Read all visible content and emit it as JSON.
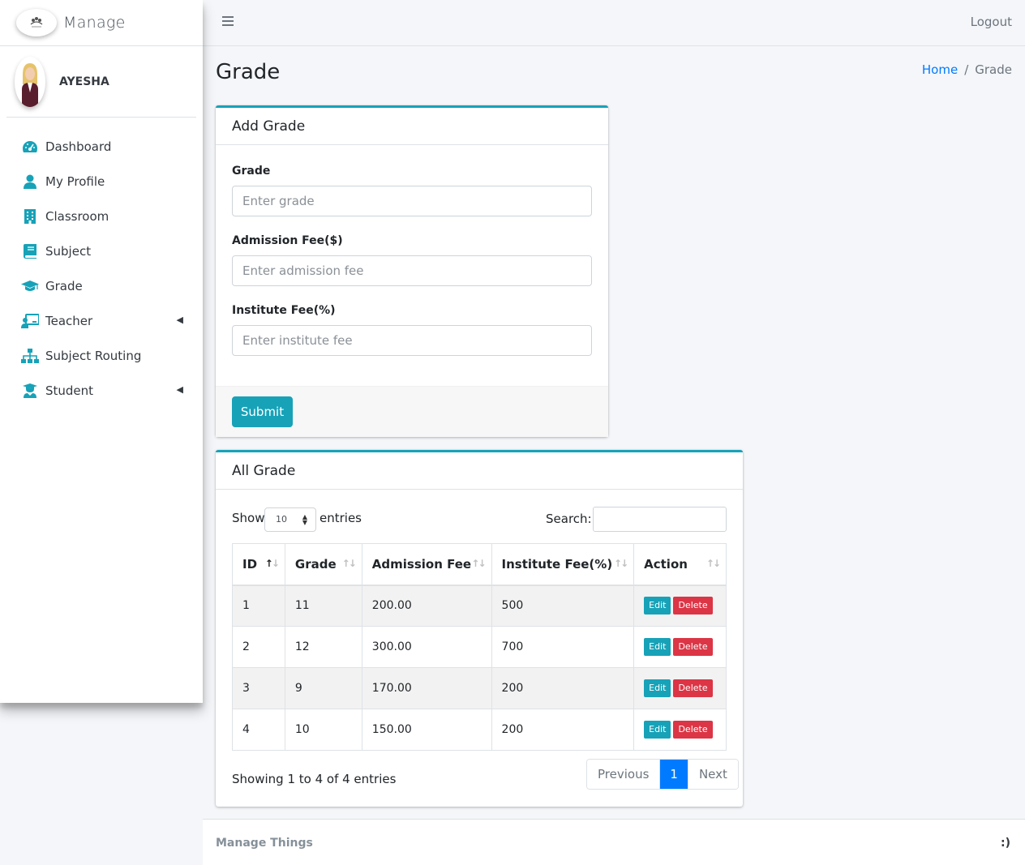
{
  "brand": {
    "name": "Manage"
  },
  "user": {
    "name": "AYESHA"
  },
  "sidebar": {
    "items": [
      {
        "label": "Dashboard",
        "icon": "tachometer-icon"
      },
      {
        "label": "My Profile",
        "icon": "user-icon"
      },
      {
        "label": "Classroom",
        "icon": "building-icon"
      },
      {
        "label": "Subject",
        "icon": "book-icon"
      },
      {
        "label": "Grade",
        "icon": "graduation-cap-icon"
      },
      {
        "label": "Teacher",
        "icon": "chalkboard-teacher-icon",
        "has_submenu": true
      },
      {
        "label": "Subject Routing",
        "icon": "sitemap-icon"
      },
      {
        "label": "Student",
        "icon": "user-graduate-icon",
        "has_submenu": true
      }
    ]
  },
  "header": {
    "logout": "Logout"
  },
  "page": {
    "title": "Grade"
  },
  "breadcrumb": {
    "home": "Home",
    "current": "Grade"
  },
  "form": {
    "title": "Add Grade",
    "fields": {
      "grade": {
        "label": "Grade",
        "placeholder": "Enter grade"
      },
      "admission_fee": {
        "label": "Admission Fee($)",
        "placeholder": "Enter admission fee"
      },
      "institute_fee": {
        "label": "Institute Fee(%)",
        "placeholder": "Enter institute fee"
      }
    },
    "submit": "Submit"
  },
  "table": {
    "title": "All Grade",
    "show": "Show",
    "entries_value": "10",
    "entries": "entries",
    "search": "Search:",
    "columns": [
      "ID",
      "Grade",
      "Admission Fee",
      "Institute Fee(%)",
      "Action"
    ],
    "rows": [
      {
        "id": "1",
        "grade": "11",
        "admission_fee": "200.00",
        "institute_fee": "500"
      },
      {
        "id": "2",
        "grade": "12",
        "admission_fee": "300.00",
        "institute_fee": "700"
      },
      {
        "id": "3",
        "grade": "9",
        "admission_fee": "170.00",
        "institute_fee": "200"
      },
      {
        "id": "4",
        "grade": "10",
        "admission_fee": "150.00",
        "institute_fee": "200"
      }
    ],
    "edit": "Edit",
    "delete": "Delete",
    "info": "Showing 1 to 4 of 4 entries",
    "pagination": {
      "previous": "Previous",
      "current": "1",
      "next": "Next"
    }
  },
  "footer": {
    "left": "Manage Things",
    "right": ":)"
  },
  "colors": {
    "accent": "#17a2b8",
    "primary": "#007bff",
    "danger": "#dc3545"
  }
}
